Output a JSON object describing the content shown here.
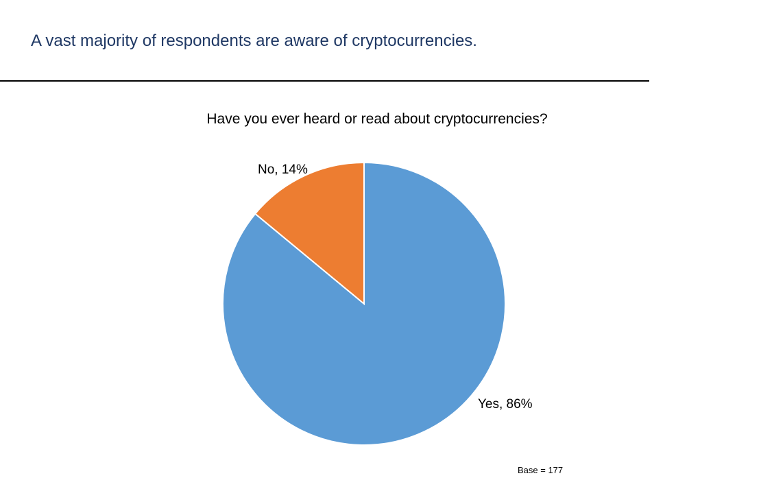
{
  "slide": {
    "title": "A vast majority of respondents are aware of cryptocurrencies.",
    "base_note": "Base = 177"
  },
  "chart_data": {
    "type": "pie",
    "title": "Have you ever heard or read about cryptocurrencies?",
    "categories": [
      "Yes",
      "No"
    ],
    "values": [
      86,
      14
    ],
    "unit": "%",
    "data_labels": [
      "Yes, 86%",
      "No, 14%"
    ],
    "colors": [
      "#5b9bd5",
      "#ed7d31"
    ],
    "start_angle_deg": 0,
    "direction": "counterclockwise-from-top"
  }
}
